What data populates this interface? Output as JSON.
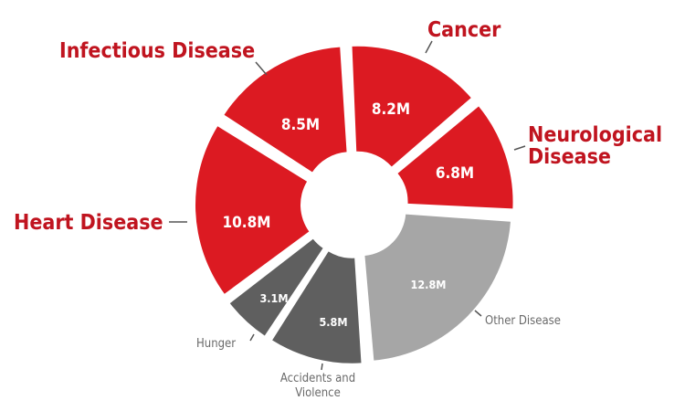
{
  "chart_data": {
    "type": "pie",
    "subtype": "donut",
    "unit": "M",
    "slices": [
      {
        "label": "Cancer",
        "value": 8.2,
        "value_label": "8.2M",
        "color": "#dc1a22"
      },
      {
        "label": "Neurological Disease",
        "label_lines": [
          "Neurological",
          "Disease"
        ],
        "value": 6.8,
        "value_label": "6.8M",
        "color": "#dc1a22"
      },
      {
        "label": "Other Disease",
        "value": 12.8,
        "value_label": "12.8M",
        "color": "#a6a6a6"
      },
      {
        "label": "Accidents and Violence",
        "label_lines": [
          "Accidents and",
          "Violence"
        ],
        "value": 5.8,
        "value_label": "5.8M",
        "color": "#5f5f5f"
      },
      {
        "label": "Hunger",
        "value": 3.1,
        "value_label": "3.1M",
        "color": "#5f5f5f"
      },
      {
        "label": "Heart Disease",
        "value": 10.8,
        "value_label": "10.8M",
        "color": "#dc1a22"
      },
      {
        "label": "Infectious Disease",
        "value": 8.5,
        "value_label": "8.5M",
        "color": "#dc1a22"
      }
    ]
  }
}
